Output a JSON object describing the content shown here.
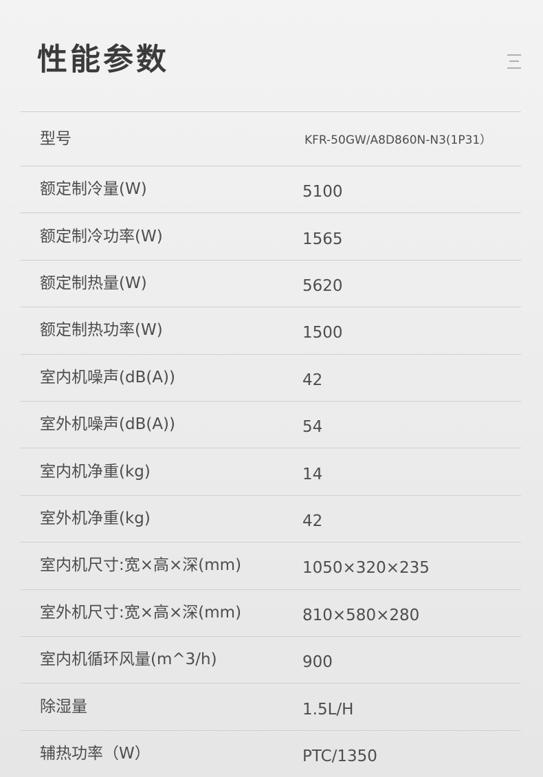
{
  "header": {
    "title": "性能参数"
  },
  "table": {
    "rows": [
      [
        "型号",
        "KFR-50GW/A8D860N-N3(1P31）"
      ],
      [
        "额定制冷量(W)",
        "5100"
      ],
      [
        "额定制冷功率(W)",
        "1565"
      ],
      [
        "额定制热量(W)",
        "5620"
      ],
      [
        "额定制热功率(W)",
        "1500"
      ],
      [
        "室内机噪声(dB(A))",
        "42"
      ],
      [
        "室外机噪声(dB(A))",
        "54"
      ],
      [
        "室内机净重(kg)",
        "14"
      ],
      [
        "室外机净重(kg)",
        "42"
      ],
      [
        "室内机尺寸:宽×高×深(mm)",
        "1050×320×235"
      ],
      [
        "室外机尺寸:宽×高×深(mm)",
        "810×580×280"
      ],
      [
        "室内机循环风量(m^3/h)",
        "900"
      ],
      [
        "除湿量",
        "1.5L/H"
      ],
      [
        "辅热功率（W）",
        "PTC/1350"
      ]
    ]
  }
}
